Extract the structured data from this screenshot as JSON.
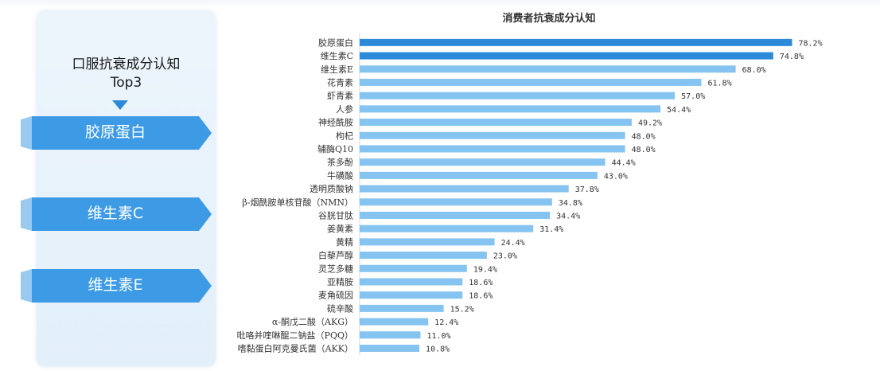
{
  "panel": {
    "title": "口服抗衰成分认知",
    "subtitle": "Top3",
    "ribbons": [
      "胶原蛋白",
      "维生素C",
      "维生素E"
    ]
  },
  "colors": {
    "bar_top": "#2c8ad8",
    "bar_rest": "#85c4f0",
    "ribbon": "#3d9be6"
  },
  "chart_data": {
    "type": "bar",
    "orientation": "horizontal",
    "title": "消费者抗衰成分认知",
    "xlim": [
      0,
      80
    ],
    "grid": false,
    "highlighted_count": 2,
    "categories": [
      "胶原蛋白",
      "维生素C",
      "维生素E",
      "花青素",
      "虾青素",
      "人参",
      "神经酰胺",
      "枸杞",
      "辅酶Q10",
      "茶多酚",
      "牛磺酸",
      "透明质酸钠",
      "β-烟酰胺单核苷酸（NMN）",
      "谷胱甘肽",
      "姜黄素",
      "黄精",
      "白藜芦醇",
      "灵芝多糖",
      "亚精胺",
      "麦角硫因",
      "硫辛酸",
      "α-酮戊二酸（AKG）",
      "吡咯并喹啉醌二钠盐（PQQ）",
      "嗜黏蛋白阿克曼氏菌（AKK）"
    ],
    "values": [
      78.2,
      74.8,
      68.0,
      61.8,
      57.0,
      54.4,
      49.2,
      48.0,
      48.0,
      44.4,
      43.0,
      37.8,
      34.8,
      34.4,
      31.4,
      24.4,
      23.0,
      19.4,
      18.6,
      18.6,
      15.2,
      12.4,
      11.0,
      10.8
    ],
    "value_labels": [
      "78.2%",
      "74.8%",
      "68.0%",
      "61.8%",
      "57.0%",
      "54.4%",
      "49.2%",
      "48.0%",
      "48.0%",
      "44.4%",
      "43.0%",
      "37.8%",
      "34.8%",
      "34.4%",
      "31.4%",
      "24.4%",
      "23.0%",
      "19.4%",
      "18.6%",
      "18.6%",
      "15.2%",
      "12.4%",
      "11.0%",
      "10.8%"
    ]
  }
}
